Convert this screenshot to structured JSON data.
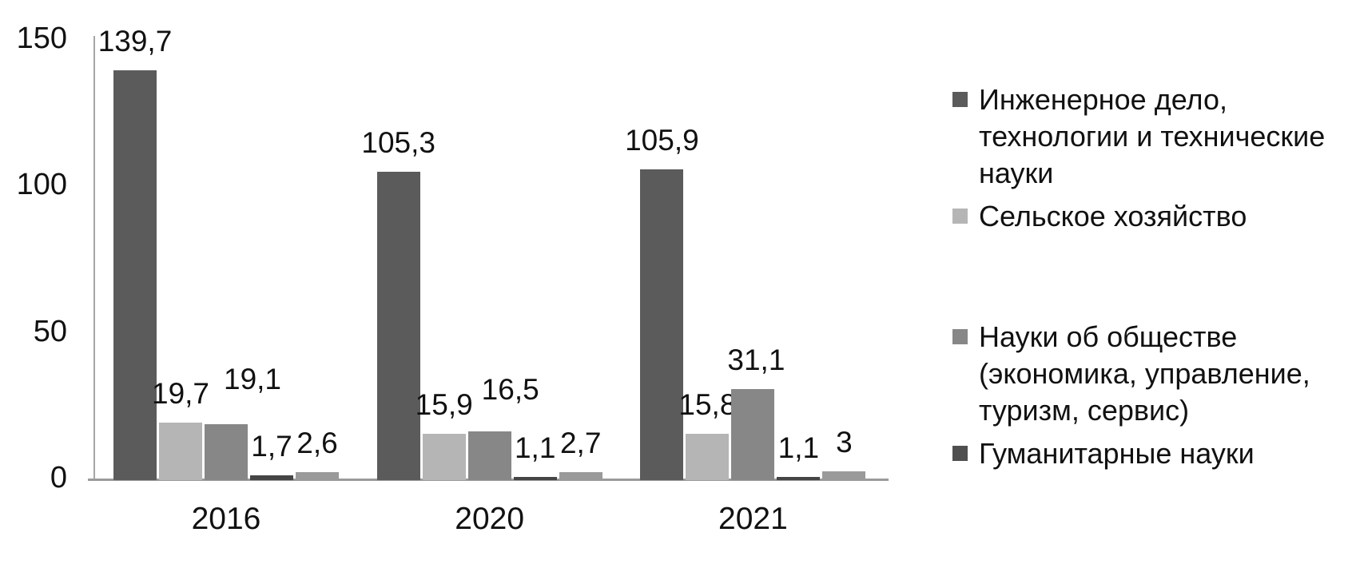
{
  "chart_data": {
    "type": "bar",
    "title": "",
    "xlabel": "",
    "ylabel": "",
    "categories": [
      "2016",
      "2020",
      "2021"
    ],
    "series": [
      {
        "name": "Инженерное дело, технологии и технические науки",
        "color": "#5b5b5b",
        "values": [
          139.7,
          105.3,
          105.9
        ],
        "labels": [
          "139,7",
          "105,3",
          "105,9"
        ]
      },
      {
        "name": "Сельское хозяйство",
        "color": "#b5b5b5",
        "values": [
          19.7,
          15.9,
          15.8
        ],
        "labels": [
          "19,7",
          "15,9",
          "15,8"
        ]
      },
      {
        "name": "Науки об обществе (экономика, управление, туризм, сервис)",
        "color": "#878787",
        "values": [
          19.1,
          16.5,
          31.1
        ],
        "labels": [
          "19,1",
          "16,5",
          "31,1"
        ]
      },
      {
        "name": "Гуманитарные науки",
        "color": "#454545",
        "values": [
          1.7,
          1.1,
          1.1
        ],
        "labels": [
          "1,7",
          "1,1",
          "1,1"
        ]
      },
      {
        "name": "",
        "color": "#9a9a9a",
        "values": [
          2.6,
          2.7,
          3
        ],
        "labels": [
          "2,6",
          "2,7",
          "3"
        ]
      }
    ],
    "ylim": [
      0,
      150
    ],
    "yticks": [
      0,
      50,
      100,
      150
    ],
    "ytick_labels": [
      "0",
      "50",
      "100",
      "150"
    ],
    "decimal_separator": ",",
    "grid": false,
    "legend_position": "right",
    "label_offsets": {
      "2": [
        [
          33,
          -20
        ],
        [
          26,
          -16
        ],
        [
          4,
          0
        ]
      ]
    }
  },
  "legend": {
    "items": [
      {
        "label": "Инженерное дело,\nтехнологии и технические\nнауки",
        "color": "#5b5b5b",
        "gap_before": false
      },
      {
        "label": "Сельское хозяйство",
        "color": "#b5b5b5",
        "gap_before": false
      },
      {
        "label": "Науки об обществе\n(экономика, управление,\nтуризм, сервис)",
        "color": "#878787",
        "gap_before": true
      },
      {
        "label": "Гуманитарные науки",
        "color": "#4f4f4f",
        "gap_before": false
      }
    ]
  },
  "axis_colors": {
    "line": "#a6a6a6"
  }
}
